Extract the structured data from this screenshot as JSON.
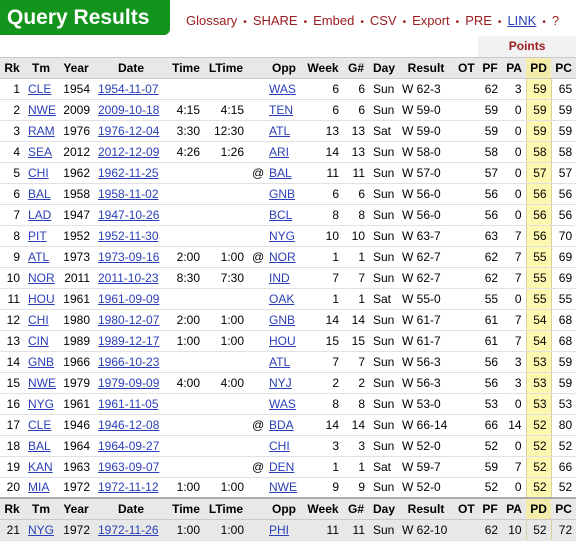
{
  "title": "Query Results",
  "menu": [
    {
      "label": "Glossary",
      "style": "item"
    },
    {
      "label": "SHARE",
      "style": "item"
    },
    {
      "label": "Embed",
      "style": "item"
    },
    {
      "label": "CSV",
      "style": "item"
    },
    {
      "label": "Export",
      "style": "item"
    },
    {
      "label": "PRE",
      "style": "item"
    },
    {
      "label": "LINK",
      "style": "link"
    },
    {
      "label": "?",
      "style": "item"
    }
  ],
  "menu_separator": "•",
  "group_header": "Points",
  "columns": [
    "Rk",
    "Tm",
    "Year",
    "Date",
    "Time",
    "LTime",
    "",
    "Opp",
    "Week",
    "G#",
    "Day",
    "Result",
    "OT",
    "PF",
    "PA",
    "PD",
    "PC"
  ],
  "rows": [
    [
      "1",
      "CLE",
      "1954",
      "1954-11-07",
      "",
      "",
      "",
      "WAS",
      "6",
      "6",
      "Sun",
      "W 62-3",
      "",
      "62",
      "3",
      "59",
      "65"
    ],
    [
      "2",
      "NWE",
      "2009",
      "2009-10-18",
      "4:15",
      "4:15",
      "",
      "TEN",
      "6",
      "6",
      "Sun",
      "W 59-0",
      "",
      "59",
      "0",
      "59",
      "59"
    ],
    [
      "3",
      "RAM",
      "1976",
      "1976-12-04",
      "3:30",
      "12:30",
      "",
      "ATL",
      "13",
      "13",
      "Sat",
      "W 59-0",
      "",
      "59",
      "0",
      "59",
      "59"
    ],
    [
      "4",
      "SEA",
      "2012",
      "2012-12-09",
      "4:26",
      "1:26",
      "",
      "ARI",
      "14",
      "13",
      "Sun",
      "W 58-0",
      "",
      "58",
      "0",
      "58",
      "58"
    ],
    [
      "5",
      "CHI",
      "1962",
      "1962-11-25",
      "",
      "",
      "@",
      "BAL",
      "11",
      "11",
      "Sun",
      "W 57-0",
      "",
      "57",
      "0",
      "57",
      "57"
    ],
    [
      "6",
      "BAL",
      "1958",
      "1958-11-02",
      "",
      "",
      "",
      "GNB",
      "6",
      "6",
      "Sun",
      "W 56-0",
      "",
      "56",
      "0",
      "56",
      "56"
    ],
    [
      "7",
      "LAD",
      "1947",
      "1947-10-26",
      "",
      "",
      "",
      "BCL",
      "8",
      "8",
      "Sun",
      "W 56-0",
      "",
      "56",
      "0",
      "56",
      "56"
    ],
    [
      "8",
      "PIT",
      "1952",
      "1952-11-30",
      "",
      "",
      "",
      "NYG",
      "10",
      "10",
      "Sun",
      "W 63-7",
      "",
      "63",
      "7",
      "56",
      "70"
    ],
    [
      "9",
      "ATL",
      "1973",
      "1973-09-16",
      "2:00",
      "1:00",
      "@",
      "NOR",
      "1",
      "1",
      "Sun",
      "W 62-7",
      "",
      "62",
      "7",
      "55",
      "69"
    ],
    [
      "10",
      "NOR",
      "2011",
      "2011-10-23",
      "8:30",
      "7:30",
      "",
      "IND",
      "7",
      "7",
      "Sun",
      "W 62-7",
      "",
      "62",
      "7",
      "55",
      "69"
    ],
    [
      "11",
      "HOU",
      "1961",
      "1961-09-09",
      "",
      "",
      "",
      "OAK",
      "1",
      "1",
      "Sat",
      "W 55-0",
      "",
      "55",
      "0",
      "55",
      "55"
    ],
    [
      "12",
      "CHI",
      "1980",
      "1980-12-07",
      "2:00",
      "1:00",
      "",
      "GNB",
      "14",
      "14",
      "Sun",
      "W 61-7",
      "",
      "61",
      "7",
      "54",
      "68"
    ],
    [
      "13",
      "CIN",
      "1989",
      "1989-12-17",
      "1:00",
      "1:00",
      "",
      "HOU",
      "15",
      "15",
      "Sun",
      "W 61-7",
      "",
      "61",
      "7",
      "54",
      "68"
    ],
    [
      "14",
      "GNB",
      "1966",
      "1966-10-23",
      "",
      "",
      "",
      "ATL",
      "7",
      "7",
      "Sun",
      "W 56-3",
      "",
      "56",
      "3",
      "53",
      "59"
    ],
    [
      "15",
      "NWE",
      "1979",
      "1979-09-09",
      "4:00",
      "4:00",
      "",
      "NYJ",
      "2",
      "2",
      "Sun",
      "W 56-3",
      "",
      "56",
      "3",
      "53",
      "59"
    ],
    [
      "16",
      "NYG",
      "1961",
      "1961-11-05",
      "",
      "",
      "",
      "WAS",
      "8",
      "8",
      "Sun",
      "W 53-0",
      "",
      "53",
      "0",
      "53",
      "53"
    ],
    [
      "17",
      "CLE",
      "1946",
      "1946-12-08",
      "",
      "",
      "@",
      "BDA",
      "14",
      "14",
      "Sun",
      "W 66-14",
      "",
      "66",
      "14",
      "52",
      "80"
    ],
    [
      "18",
      "BAL",
      "1964",
      "1964-09-27",
      "",
      "",
      "",
      "CHI",
      "3",
      "3",
      "Sun",
      "W 52-0",
      "",
      "52",
      "0",
      "52",
      "52"
    ],
    [
      "19",
      "KAN",
      "1963",
      "1963-09-07",
      "",
      "",
      "@",
      "DEN",
      "1",
      "1",
      "Sat",
      "W 59-7",
      "",
      "59",
      "7",
      "52",
      "66"
    ],
    [
      "20",
      "MIA",
      "1972",
      "1972-11-12",
      "1:00",
      "1:00",
      "",
      "NWE",
      "9",
      "9",
      "Sun",
      "W 52-0",
      "",
      "52",
      "0",
      "52",
      "52"
    ]
  ],
  "footer_row": [
    "21",
    "NYG",
    "1972",
    "1972-11-26",
    "1:00",
    "1:00",
    "",
    "PHI",
    "11",
    "11",
    "Sun",
    "W 62-10",
    "",
    "62",
    "10",
    "52",
    "72"
  ]
}
